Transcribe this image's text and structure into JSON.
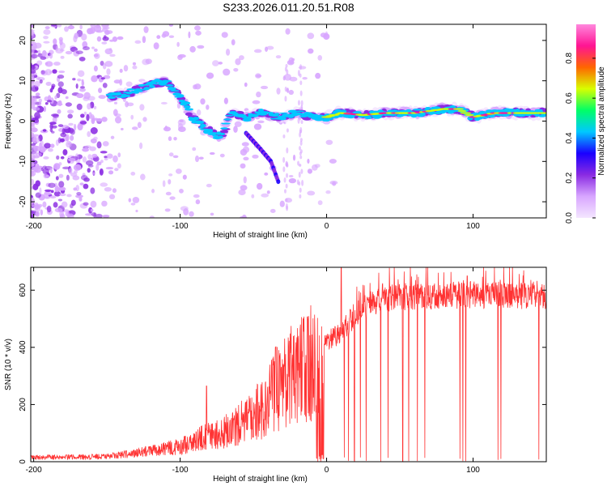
{
  "title": "S233.2026.011.20.51.R08",
  "chart_data": [
    {
      "type": "heatmap",
      "name": "spectrogram",
      "xlabel": "Height of straight line (km)",
      "ylabel": "Frequency (Hz)",
      "xlim": [
        -202,
        150
      ],
      "ylim": [
        -24,
        24
      ],
      "xticks": [
        -200,
        -100,
        0,
        100
      ],
      "xtick_labels": [
        "-200",
        "-100",
        "0",
        "100"
      ],
      "yticks": [
        -20,
        -10,
        0,
        10,
        20
      ],
      "ytick_labels": [
        "-20",
        "-10",
        "0",
        "10",
        "20"
      ],
      "colorbar": {
        "label": "Normalized spectral amplitude",
        "range": [
          0,
          0.97
        ],
        "ticks": [
          0.0,
          0.2,
          0.4,
          0.6,
          0.8
        ],
        "tick_labels": [
          "0.0",
          "0.2",
          "0.4",
          "0.6",
          "0.8"
        ],
        "colors": [
          "#f4e6ff",
          "#d8a6ff",
          "#8a2be2",
          "#1a00ff",
          "#00c8ff",
          "#00ff66",
          "#d8ff00",
          "#ff6600",
          "#ff1493",
          "#ff88dd"
        ]
      },
      "ridge": [
        {
          "x": -148,
          "f": 6
        },
        {
          "x": -135,
          "f": 7
        },
        {
          "x": -120,
          "f": 9
        },
        {
          "x": -110,
          "f": 10
        },
        {
          "x": -100,
          "f": 6
        },
        {
          "x": -92,
          "f": 1
        },
        {
          "x": -82,
          "f": -2
        },
        {
          "x": -72,
          "f": -4
        },
        {
          "x": -65,
          "f": 2
        },
        {
          "x": -55,
          "f": 1
        },
        {
          "x": -45,
          "f": 2
        },
        {
          "x": -32,
          "f": 1
        },
        {
          "x": -20,
          "f": 2
        },
        {
          "x": -10,
          "f": 1
        },
        {
          "x": 0,
          "f": 1
        },
        {
          "x": 10,
          "f": 2
        },
        {
          "x": 25,
          "f": 1.5
        },
        {
          "x": 40,
          "f": 2
        },
        {
          "x": 60,
          "f": 2
        },
        {
          "x": 80,
          "f": 3
        },
        {
          "x": 90,
          "f": 3
        },
        {
          "x": 100,
          "f": 1
        },
        {
          "x": 115,
          "f": 2
        },
        {
          "x": 130,
          "f": 2
        },
        {
          "x": 150,
          "f": 2
        }
      ],
      "branch": [
        {
          "x": -55,
          "f": -3
        },
        {
          "x": -45,
          "f": -7
        },
        {
          "x": -38,
          "f": -10
        },
        {
          "x": -33,
          "f": -15
        }
      ]
    },
    {
      "type": "line",
      "name": "snr",
      "xlabel": "Height of straight line (km)",
      "ylabel": "SNR (10 * v/v)",
      "xlim": [
        -202,
        150
      ],
      "ylim": [
        0,
        680
      ],
      "xticks": [
        -200,
        -100,
        0,
        100
      ],
      "xtick_labels": [
        "-200",
        "-100",
        "0",
        "100"
      ],
      "yticks": [
        0,
        200,
        400,
        600
      ],
      "ytick_labels": [
        "0",
        "200",
        "400",
        "600"
      ],
      "line_color": "#ff3333",
      "trend": [
        {
          "x": -202,
          "y": 15
        },
        {
          "x": -150,
          "y": 18
        },
        {
          "x": -130,
          "y": 30
        },
        {
          "x": -110,
          "y": 45
        },
        {
          "x": -95,
          "y": 60
        },
        {
          "x": -82,
          "y": 90
        },
        {
          "x": -70,
          "y": 100
        },
        {
          "x": -60,
          "y": 130
        },
        {
          "x": -45,
          "y": 180
        },
        {
          "x": -35,
          "y": 250
        },
        {
          "x": -25,
          "y": 300
        },
        {
          "x": -15,
          "y": 330
        },
        {
          "x": -5,
          "y": 360
        },
        {
          "x": 0,
          "y": 420
        },
        {
          "x": 10,
          "y": 450
        },
        {
          "x": 20,
          "y": 520
        },
        {
          "x": 30,
          "y": 560
        },
        {
          "x": 45,
          "y": 580
        },
        {
          "x": 70,
          "y": 585
        },
        {
          "x": 100,
          "y": 590
        },
        {
          "x": 150,
          "y": 585
        }
      ],
      "spikes": [
        {
          "x": -82,
          "y": 265
        },
        {
          "x": -35,
          "y": 400
        },
        {
          "x": -16,
          "y": 500
        },
        {
          "x": 10,
          "y": 680
        },
        {
          "x": 96,
          "y": 650
        }
      ],
      "dropouts": [
        -6,
        -4,
        -2,
        12,
        15,
        19,
        23,
        27,
        37,
        42,
        52,
        56,
        62,
        67,
        91,
        93,
        95,
        117,
        119,
        145
      ]
    }
  ]
}
